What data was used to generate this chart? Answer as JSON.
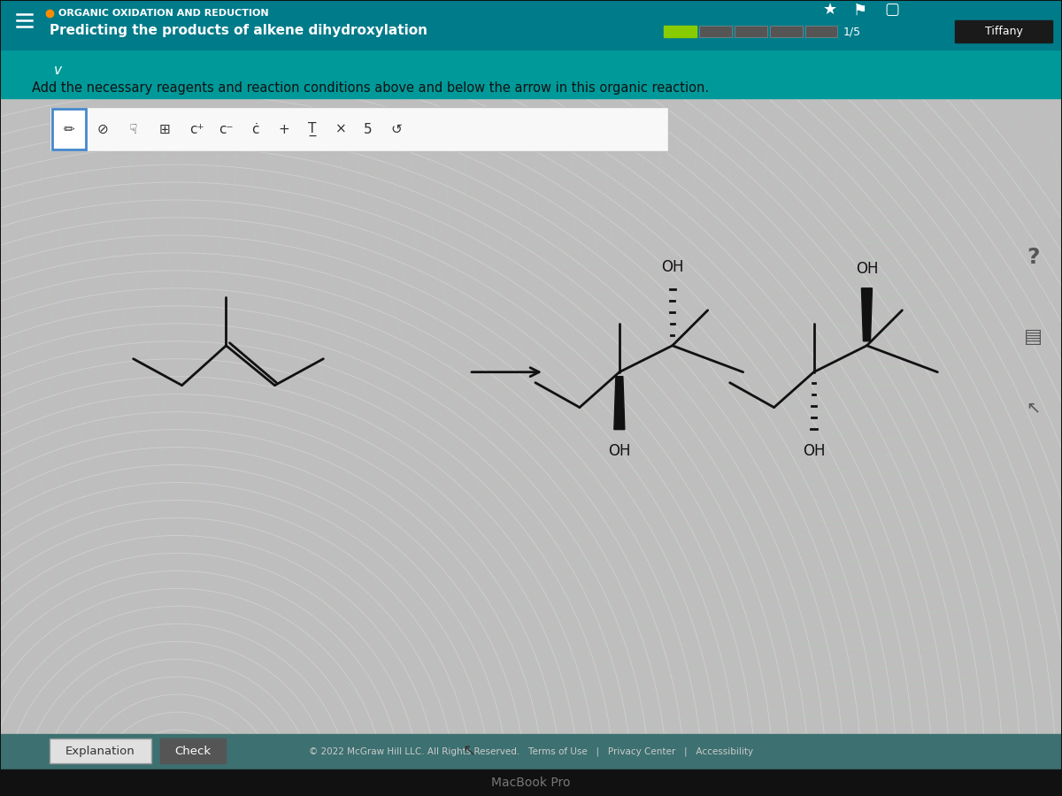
{
  "title": "ORGANIC OXIDATION AND REDUCTION",
  "subtitle": "Predicting the products of alkene dihydroxylation",
  "instruction": "Add the necessary reagents and reaction conditions above and below the arrow in this organic reaction.",
  "header_bg": "#007B8A",
  "subheader_bg": "#009999",
  "progress_label": "1/5",
  "user_label": "Tiffany",
  "btn_explanation": "Explanation",
  "btn_check": "Check",
  "footer_text": "© 2022 McGraw Hill LLC. All Rights Reserved.   Terms of Use   |   Privacy Center   |   Accessibility",
  "macbook_text": "MacBook Pro",
  "body_bg": "#C5C5C5",
  "ripple_color_white": "#ffffff",
  "ripple_color_green": "#90EE90",
  "ripple_color_pink": "#FFB6C1"
}
